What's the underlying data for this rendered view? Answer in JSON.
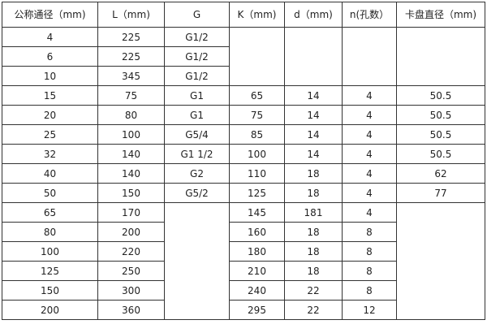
{
  "headers": [
    "公称通径（mm)",
    "L（mm)",
    "G",
    "K（mm)",
    "d（mm)",
    "n(孔数）",
    "卡盘直径（mm)"
  ],
  "rows": [
    [
      "4",
      "225",
      "G1/2",
      "",
      "",
      "",
      ""
    ],
    [
      "6",
      "225",
      "G1/2",
      "",
      "",
      "",
      ""
    ],
    [
      "10",
      "345",
      "G1/2",
      "",
      "",
      "",
      ""
    ],
    [
      "15",
      "75",
      "G1",
      "65",
      "14",
      "4",
      "50.5"
    ],
    [
      "20",
      "80",
      "G1",
      "75",
      "14",
      "4",
      "50.5"
    ],
    [
      "25",
      "100",
      "G5/4",
      "85",
      "14",
      "4",
      "50.5"
    ],
    [
      "32",
      "140",
      "G1  1/2",
      "100",
      "14",
      "4",
      "50.5"
    ],
    [
      "40",
      "140",
      "G2",
      "110",
      "18",
      "4",
      "62"
    ],
    [
      "50",
      "150",
      "G5/2",
      "125",
      "18",
      "4",
      "77"
    ],
    [
      "65",
      "170",
      "",
      "145",
      "181",
      "4",
      ""
    ],
    [
      "80",
      "200",
      "",
      "160",
      "18",
      "8",
      ""
    ],
    [
      "100",
      "220",
      "",
      "180",
      "18",
      "8",
      ""
    ],
    [
      "125",
      "250",
      "",
      "210",
      "18",
      "8",
      ""
    ],
    [
      "150",
      "300",
      "",
      "240",
      "22",
      "8",
      ""
    ],
    [
      "200",
      "360",
      "",
      "295",
      "22",
      "12",
      ""
    ]
  ]
}
